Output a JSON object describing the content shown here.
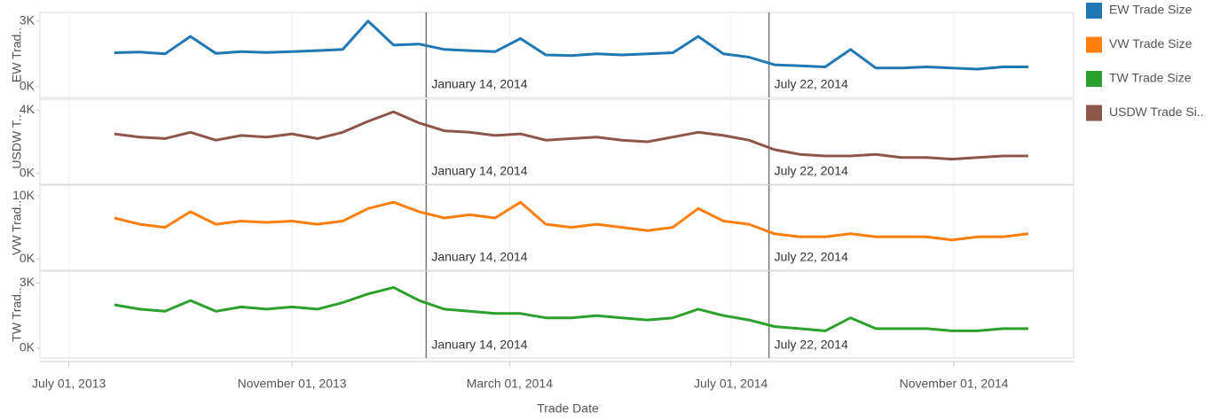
{
  "chart_data": {
    "type": "line",
    "x_label": "Trade Date",
    "x": [
      "2013-07-26",
      "2013-08-09",
      "2013-08-23",
      "2013-09-06",
      "2013-09-20",
      "2013-10-04",
      "2013-10-18",
      "2013-11-01",
      "2013-11-15",
      "2013-11-29",
      "2013-12-13",
      "2013-12-27",
      "2014-01-10",
      "2014-01-24",
      "2014-02-07",
      "2014-02-21",
      "2014-03-07",
      "2014-03-21",
      "2014-04-04",
      "2014-04-18",
      "2014-05-02",
      "2014-05-16",
      "2014-05-30",
      "2014-06-13",
      "2014-06-27",
      "2014-07-11",
      "2014-07-25",
      "2014-08-08",
      "2014-08-22",
      "2014-09-05",
      "2014-09-19",
      "2014-10-03",
      "2014-10-17",
      "2014-10-31",
      "2014-11-14",
      "2014-11-28",
      "2014-12-12"
    ],
    "xlim": [
      "2013-06-15",
      "2015-01-06"
    ],
    "xticks": [
      {
        "value": "2013-07-01",
        "label": "July 01, 2013"
      },
      {
        "value": "2013-11-01",
        "label": "November 01, 2013"
      },
      {
        "value": "2014-03-01",
        "label": "March 01, 2014"
      },
      {
        "value": "2014-07-01",
        "label": "July 01, 2014"
      },
      {
        "value": "2014-11-01",
        "label": "November 01, 2014"
      }
    ],
    "grid": true,
    "reference_lines": [
      {
        "x": "2014-01-14",
        "label": "January 14, 2014"
      },
      {
        "x": "2014-07-22",
        "label": "July 22, 2014"
      }
    ],
    "legend": "right",
    "series": [
      {
        "name": "EW Trade Size",
        "color": "#1f77b4",
        "panel": 0,
        "y_label": "EW Trad..",
        "ylim": [
          -500,
          3400
        ],
        "yticks": [
          {
            "value": 0,
            "label": "0K"
          },
          {
            "value": 3000,
            "label": "3K"
          }
        ],
        "values": [
          1550,
          1580,
          1500,
          2300,
          1520,
          1600,
          1560,
          1600,
          1650,
          1700,
          3000,
          1900,
          1950,
          1700,
          1650,
          1600,
          2200,
          1450,
          1420,
          1500,
          1450,
          1500,
          1550,
          2300,
          1500,
          1350,
          1000,
          950,
          900,
          1700,
          850,
          850,
          900,
          850,
          800,
          900,
          900
        ]
      },
      {
        "name": "VW Trade Size",
        "color": "#ff7f0e",
        "panel": 2,
        "y_label": "VW Trad..",
        "ylim": [
          -1800,
          11700
        ],
        "yticks": [
          {
            "value": 0,
            "label": "0K"
          },
          {
            "value": 10000,
            "label": "10K"
          }
        ],
        "values": [
          6500,
          5500,
          5000,
          7500,
          5500,
          6000,
          5800,
          6000,
          5500,
          6000,
          8000,
          9000,
          7500,
          6500,
          7000,
          6500,
          9000,
          5500,
          5000,
          5500,
          5000,
          4500,
          5000,
          8000,
          6000,
          5500,
          4000,
          3500,
          3500,
          4000,
          3500,
          3500,
          3500,
          3000,
          3500,
          3500,
          4000
        ]
      },
      {
        "name": "TW Trade Size",
        "color": "#2ca02c",
        "panel": 3,
        "y_label": "TW Trad..",
        "ylim": [
          -450,
          3550
        ],
        "yticks": [
          {
            "value": 0,
            "label": "0K"
          },
          {
            "value": 3000,
            "label": "3K"
          }
        ],
        "values": [
          2000,
          1800,
          1700,
          2200,
          1700,
          1900,
          1800,
          1900,
          1800,
          2100,
          2500,
          2800,
          2200,
          1800,
          1700,
          1600,
          1600,
          1400,
          1400,
          1500,
          1400,
          1300,
          1400,
          1800,
          1500,
          1300,
          1000,
          900,
          800,
          1400,
          900,
          900,
          900,
          800,
          800,
          900,
          900
        ]
      },
      {
        "name": "USDW Trade Si..",
        "color": "#8c564b",
        "panel": 1,
        "y_label": "USDW T..",
        "ylim": [
          -700,
          4700
        ],
        "yticks": [
          {
            "value": 0,
            "label": "0K"
          },
          {
            "value": 4000,
            "label": "4K"
          }
        ],
        "values": [
          2500,
          2300,
          2200,
          2600,
          2100,
          2400,
          2300,
          2500,
          2200,
          2600,
          3300,
          3900,
          3200,
          2700,
          2600,
          2400,
          2500,
          2100,
          2200,
          2300,
          2100,
          2000,
          2300,
          2600,
          2400,
          2100,
          1500,
          1200,
          1100,
          1100,
          1200,
          1000,
          1000,
          900,
          1000,
          1100,
          1100
        ]
      }
    ]
  }
}
